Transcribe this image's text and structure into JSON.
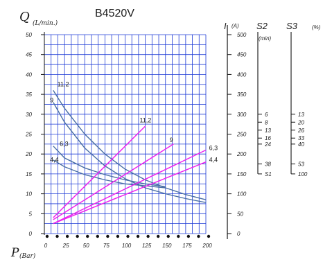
{
  "title": "B4520V",
  "chart_data": {
    "type": "line",
    "x_axis": {
      "label": "P",
      "unit": "(Bar)",
      "range": [
        0,
        200
      ],
      "ticks": [
        "0",
        "25",
        "50",
        "75",
        "100",
        "125",
        "150",
        "175",
        "200"
      ]
    },
    "y_axis": {
      "label": "Q",
      "unit": "(L/min.)",
      "range": [
        0,
        50
      ],
      "ticks": [
        "0",
        "5",
        "10",
        "15",
        "20",
        "25",
        "30",
        "35",
        "40",
        "45",
        "50"
      ]
    },
    "current_axis": {
      "label": "I",
      "unit": "(A)",
      "ticks": [
        "0",
        "50",
        "100",
        "150",
        "200",
        "250",
        "300",
        "350",
        "400",
        "450",
        "500"
      ]
    },
    "s2_axis": {
      "label": "S2",
      "unit": "(min)",
      "ticks": [
        {
          "text": "6",
          "current": 300
        },
        {
          "text": "8",
          "current": 280
        },
        {
          "text": "13",
          "current": 260
        },
        {
          "text": "16",
          "current": 240
        },
        {
          "text": "24",
          "current": 225
        },
        {
          "text": "38",
          "current": 175
        },
        {
          "text": "S1",
          "current": 150
        }
      ]
    },
    "s3_axis": {
      "label": "S3",
      "unit": "(%)",
      "ticks": [
        {
          "text": "13",
          "current": 300
        },
        {
          "text": "20",
          "current": 280
        },
        {
          "text": "26",
          "current": 260
        },
        {
          "text": "33",
          "current": 240
        },
        {
          "text": "40",
          "current": 225
        },
        {
          "text": "53",
          "current": 175
        },
        {
          "text": "100",
          "current": 150
        }
      ]
    },
    "flow_series": [
      {
        "name": "11,2",
        "color": "#4a6fa5",
        "points": [
          [
            11,
            36
          ],
          [
            25,
            31.5
          ],
          [
            50,
            25
          ],
          [
            75,
            20
          ],
          [
            100,
            16.2
          ],
          [
            125,
            13.5
          ],
          [
            150,
            11.5
          ],
          [
            175,
            9.8
          ],
          [
            200,
            8.5
          ]
        ]
      },
      {
        "name": "9",
        "color": "#4a6fa5",
        "points": [
          [
            11,
            33
          ],
          [
            25,
            28
          ],
          [
            50,
            21.5
          ],
          [
            75,
            17
          ],
          [
            100,
            13.8
          ],
          [
            125,
            11.5
          ],
          [
            150,
            10
          ],
          [
            175,
            8.8
          ],
          [
            200,
            7.8
          ]
        ]
      },
      {
        "name": "6,3",
        "color": "#4a6fa5",
        "points": [
          [
            11,
            22
          ],
          [
            25,
            19
          ],
          [
            50,
            16.5
          ],
          [
            75,
            14.8
          ],
          [
            100,
            13.5
          ],
          [
            125,
            12.5
          ],
          [
            150,
            11.8
          ]
        ]
      },
      {
        "name": "4,4",
        "color": "#4a6fa5",
        "points": [
          [
            11,
            18.5
          ],
          [
            25,
            16.8
          ],
          [
            50,
            14.8
          ],
          [
            75,
            13.5
          ],
          [
            100,
            12.5
          ],
          [
            125,
            12
          ],
          [
            150,
            11.5
          ]
        ]
      }
    ],
    "current_series": [
      {
        "name": "11,2",
        "color": "#ee22ee",
        "points": [
          [
            11,
            40
          ],
          [
            125,
            270
          ]
        ]
      },
      {
        "name": "9",
        "color": "#ee22ee",
        "points": [
          [
            11,
            35
          ],
          [
            160,
            225
          ]
        ]
      },
      {
        "name": "6,3",
        "color": "#ee22ee",
        "points": [
          [
            11,
            25
          ],
          [
            200,
            210
          ]
        ]
      },
      {
        "name": "4,4",
        "color": "#ee22ee",
        "points": [
          [
            11,
            25
          ],
          [
            200,
            180
          ]
        ]
      }
    ],
    "curve_labels": [
      {
        "text": "11,2",
        "x": 16,
        "q": 37
      },
      {
        "text": "9",
        "x": 7,
        "q": 33
      },
      {
        "text": "6,3",
        "x": 19,
        "q": 22
      },
      {
        "text": "4,4",
        "x": 7,
        "q": 18
      },
      {
        "text": "11,2",
        "x": 118,
        "q": 28
      },
      {
        "text": "9",
        "x": 155,
        "q": 23
      },
      {
        "text": "6,3",
        "x": 204,
        "q": 21
      },
      {
        "text": "4,4",
        "x": 204,
        "q": 18
      }
    ],
    "grid": true
  }
}
